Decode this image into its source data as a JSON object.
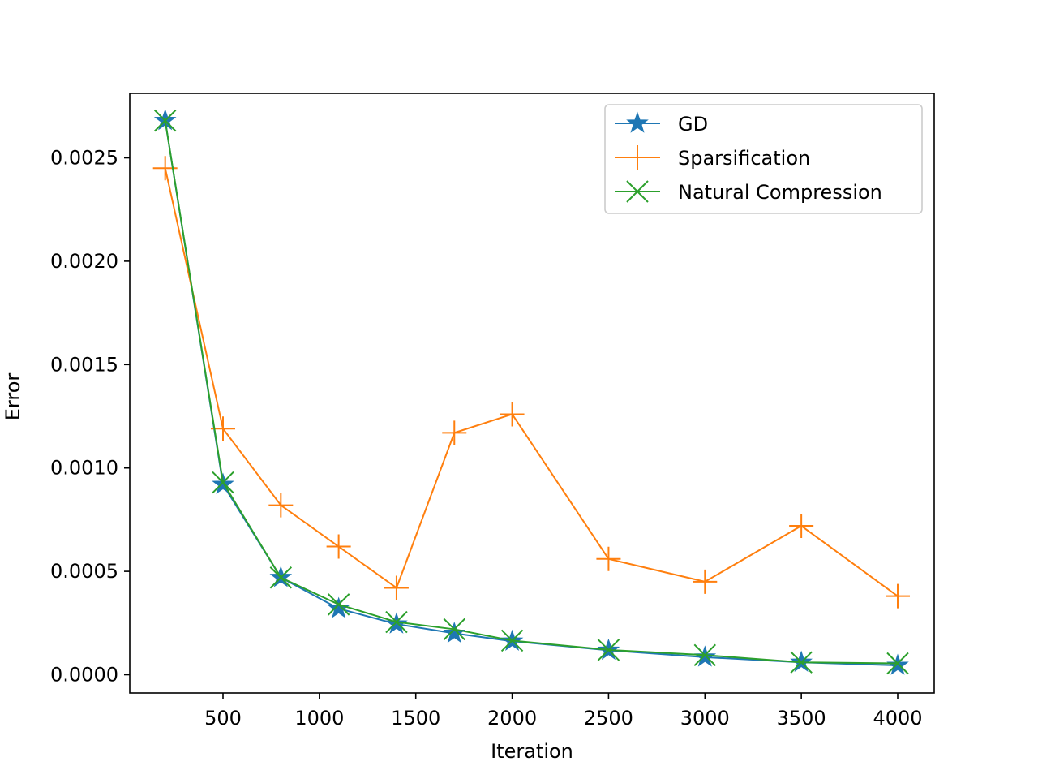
{
  "chart_data": {
    "type": "line",
    "title": "",
    "xlabel": "Iteration",
    "ylabel": "Error",
    "xlim": [
      0,
      4200
    ],
    "ylim": [
      -8e-05,
      0.00282
    ],
    "xticks": [
      500,
      1000,
      1500,
      2000,
      2500,
      3000,
      3500,
      4000
    ],
    "xtick_labels": [
      "500",
      "1000",
      "1500",
      "2000",
      "2500",
      "3000",
      "3500",
      "4000"
    ],
    "yticks": [
      0,
      0.0005,
      0.001,
      0.0015,
      0.002,
      0.0025
    ],
    "ytick_labels": [
      "0.0000",
      "0.0005",
      "0.0010",
      "0.0015",
      "0.0020",
      "0.0025"
    ],
    "grid": false,
    "legend_position": "top-right",
    "x": [
      200,
      500,
      800,
      1100,
      1400,
      1700,
      2000,
      2500,
      3000,
      3500,
      4000
    ],
    "series": [
      {
        "name": "GD",
        "color": "#1f77b4",
        "marker": "star",
        "values": [
          0.00268,
          0.00092,
          0.00047,
          0.00032,
          0.000245,
          0.0002,
          0.000162,
          0.000118,
          8.5e-05,
          6e-05,
          4.5e-05
        ]
      },
      {
        "name": "Sparsification",
        "color": "#ff7f0e",
        "marker": "plus",
        "values": [
          0.00245,
          0.00119,
          0.00082,
          0.00062,
          0.00042,
          0.00117,
          0.00126,
          0.00056,
          0.00045,
          0.00072,
          0.00038
        ]
      },
      {
        "name": "Natural Compression",
        "color": "#2ca02c",
        "marker": "x",
        "values": [
          0.00268,
          0.00093,
          0.00047,
          0.00034,
          0.000255,
          0.00022,
          0.000165,
          0.00012,
          9.5e-05,
          6e-05,
          5.5e-05
        ]
      }
    ]
  }
}
